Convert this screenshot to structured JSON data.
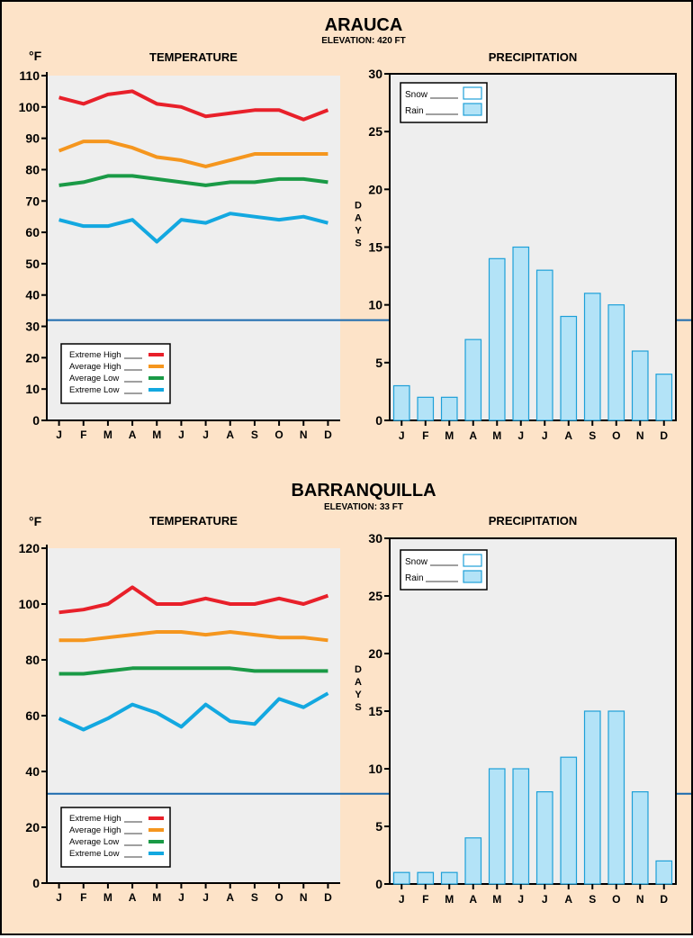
{
  "colors": {
    "background": "#fde3c8",
    "plot_bg": "#eeeeee",
    "extreme_high": "#e8202a",
    "average_high": "#f5961e",
    "average_low": "#1a9a46",
    "extreme_low": "#13a8e0",
    "freezing_line": "#1a6aae",
    "bar_fill": "#b3e3f7",
    "bar_stroke": "#1ea0d8"
  },
  "months": [
    "J",
    "F",
    "M",
    "A",
    "M",
    "J",
    "J",
    "A",
    "S",
    "O",
    "N",
    "D"
  ],
  "stations": [
    {
      "name": "ARAUCA",
      "elevation": "ELEVATION: 420 FT",
      "temp_title": "TEMPERATURE",
      "precip_title": "PRECIPITATION",
      "unit_label": "°F",
      "days_label": "DAYS",
      "temp_legend": [
        "Extreme High",
        "Average High",
        "Average Low",
        "Extreme Low"
      ],
      "precip_legend": [
        "Snow",
        "Rain"
      ]
    },
    {
      "name": "BARRANQUILLA",
      "elevation": "ELEVATION: 33 FT",
      "temp_title": "TEMPERATURE",
      "precip_title": "PRECIPITATION",
      "unit_label": "°F",
      "days_label": "DAYS",
      "temp_legend": [
        "Extreme High",
        "Average High",
        "Average Low",
        "Extreme Low"
      ],
      "precip_legend": [
        "Snow",
        "Rain"
      ]
    }
  ],
  "chart_data": [
    {
      "type": "line",
      "title": "TEMPERATURE",
      "station": "ARAUCA",
      "ylabel": "°F",
      "categories": [
        "J",
        "F",
        "M",
        "A",
        "M",
        "J",
        "J",
        "A",
        "S",
        "O",
        "N",
        "D"
      ],
      "ylim": [
        0,
        110
      ],
      "yticks": [
        0,
        10,
        20,
        30,
        40,
        50,
        60,
        70,
        80,
        90,
        100,
        110
      ],
      "freezing_line": 32,
      "series": [
        {
          "name": "Extreme High",
          "values": [
            103,
            101,
            104,
            105,
            101,
            100,
            97,
            98,
            99,
            99,
            96,
            99
          ]
        },
        {
          "name": "Average High",
          "values": [
            86,
            89,
            89,
            87,
            84,
            83,
            81,
            83,
            85,
            85,
            85,
            85
          ]
        },
        {
          "name": "Average Low",
          "values": [
            75,
            76,
            78,
            78,
            77,
            76,
            75,
            76,
            76,
            77,
            77,
            76
          ]
        },
        {
          "name": "Extreme Low",
          "values": [
            64,
            62,
            62,
            64,
            57,
            64,
            63,
            66,
            65,
            64,
            65,
            63
          ]
        }
      ],
      "legend": "bottom-left"
    },
    {
      "type": "bar",
      "title": "PRECIPITATION",
      "station": "ARAUCA",
      "ylabel": "DAYS",
      "categories": [
        "J",
        "F",
        "M",
        "A",
        "M",
        "J",
        "J",
        "A",
        "S",
        "O",
        "N",
        "D"
      ],
      "ylim": [
        0,
        30
      ],
      "yticks": [
        0,
        5,
        10,
        15,
        20,
        25,
        30
      ],
      "series": [
        {
          "name": "Rain",
          "values": [
            3,
            2,
            2,
            7,
            14,
            15,
            13,
            9,
            11,
            10,
            6,
            4
          ]
        },
        {
          "name": "Snow",
          "values": [
            0,
            0,
            0,
            0,
            0,
            0,
            0,
            0,
            0,
            0,
            0,
            0
          ]
        }
      ],
      "legend": "top-left"
    },
    {
      "type": "line",
      "title": "TEMPERATURE",
      "station": "BARRANQUILLA",
      "ylabel": "°F",
      "categories": [
        "J",
        "F",
        "M",
        "A",
        "M",
        "J",
        "J",
        "A",
        "S",
        "O",
        "N",
        "D"
      ],
      "ylim": [
        0,
        120
      ],
      "yticks": [
        0,
        20,
        40,
        60,
        80,
        100,
        120
      ],
      "freezing_line": 32,
      "series": [
        {
          "name": "Extreme High",
          "values": [
            97,
            98,
            100,
            106,
            100,
            100,
            102,
            100,
            100,
            102,
            100,
            103
          ]
        },
        {
          "name": "Average High",
          "values": [
            87,
            87,
            88,
            89,
            90,
            90,
            89,
            90,
            89,
            88,
            88,
            87
          ]
        },
        {
          "name": "Average Low",
          "values": [
            75,
            75,
            76,
            77,
            77,
            77,
            77,
            77,
            76,
            76,
            76,
            76
          ]
        },
        {
          "name": "Extreme Low",
          "values": [
            59,
            55,
            59,
            64,
            61,
            56,
            64,
            58,
            57,
            66,
            63,
            68
          ]
        }
      ],
      "legend": "bottom-left"
    },
    {
      "type": "bar",
      "title": "PRECIPITATION",
      "station": "BARRANQUILLA",
      "ylabel": "DAYS",
      "categories": [
        "J",
        "F",
        "M",
        "A",
        "M",
        "J",
        "J",
        "A",
        "S",
        "O",
        "N",
        "D"
      ],
      "ylim": [
        0,
        30
      ],
      "yticks": [
        0,
        5,
        10,
        15,
        20,
        25,
        30
      ],
      "series": [
        {
          "name": "Rain",
          "values": [
            1,
            1,
            1,
            4,
            10,
            10,
            8,
            11,
            15,
            15,
            8,
            2
          ]
        },
        {
          "name": "Snow",
          "values": [
            0,
            0,
            0,
            0,
            0,
            0,
            0,
            0,
            0,
            0,
            0,
            0
          ]
        }
      ],
      "legend": "top-left"
    }
  ]
}
